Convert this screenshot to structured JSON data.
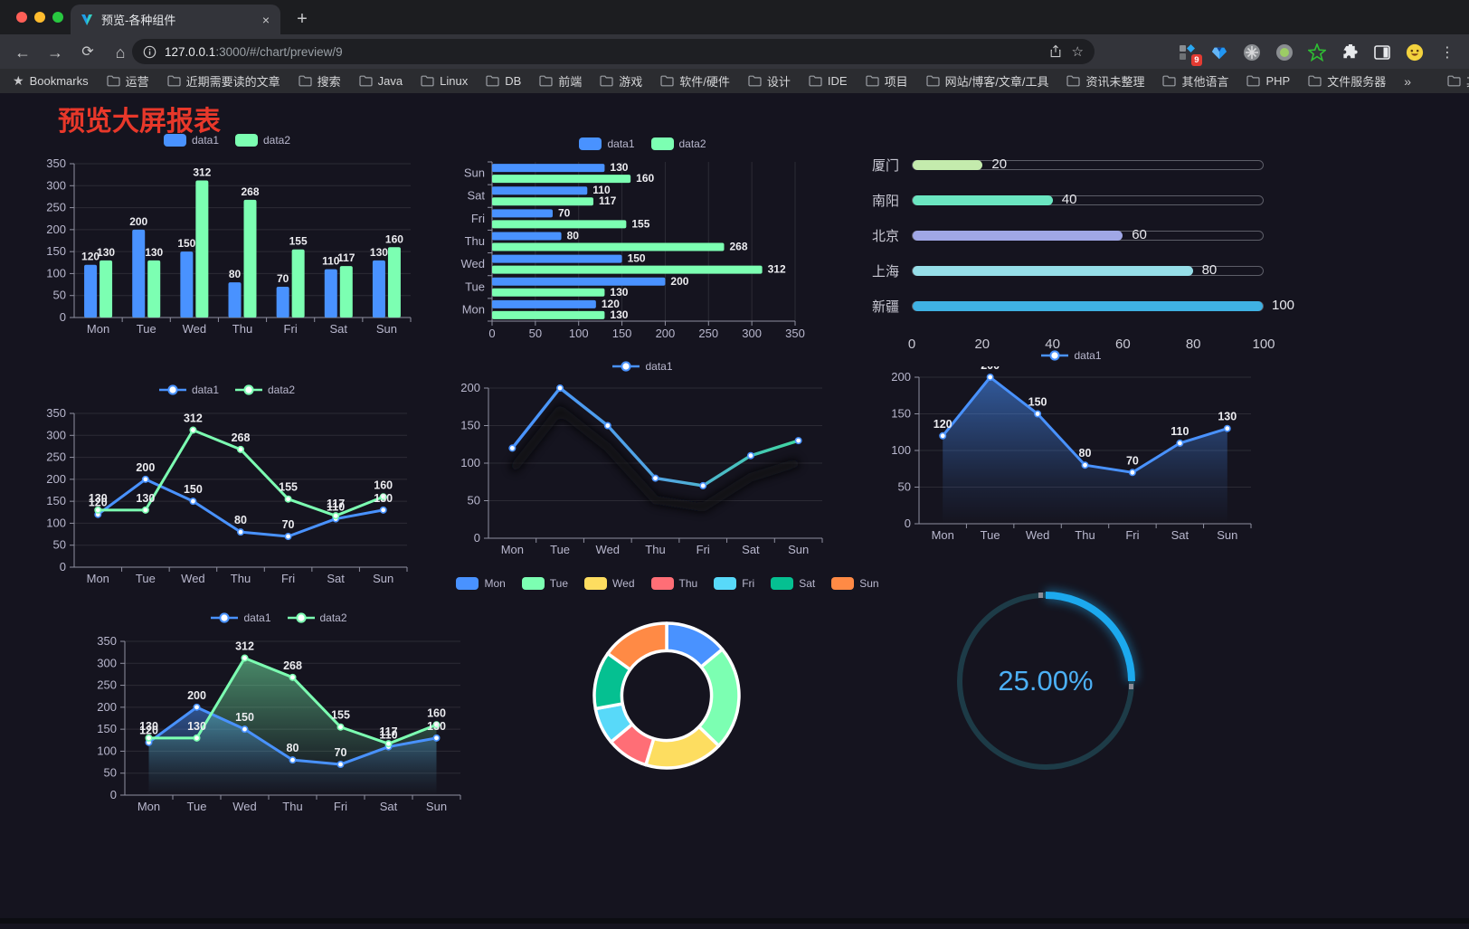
{
  "browser": {
    "tab_title": "预览-各种组件",
    "tab_close": "×",
    "new_tab": "+",
    "url_host": "127.0.0.1",
    "url_rest": ":3000/#/chart/preview/9",
    "extensions_badge": "9",
    "bookmarks_root": "Bookmarks",
    "bookmarks": [
      "运营",
      "近期需要读的文章",
      "搜索",
      "Java",
      "Linux",
      "DB",
      "前端",
      "游戏",
      "软件/硬件",
      "设计",
      "IDE",
      "项目",
      "网站/博客/文章/工具",
      "资讯未整理",
      "其他语言",
      "PHP",
      "文件服务器"
    ],
    "bookmarks_overflow": "»",
    "other_bookmarks": "其他书签"
  },
  "page": {
    "title": "预览大屏报表",
    "title_color": "#e8382a"
  },
  "palette": {
    "blue": "#4992ff",
    "green": "#7cffb2",
    "text": "#B9B8CE"
  },
  "chart_data": [
    {
      "id": "bar-vertical",
      "type": "bar",
      "categories": [
        "Mon",
        "Tue",
        "Wed",
        "Thu",
        "Fri",
        "Sat",
        "Sun"
      ],
      "series": [
        {
          "name": "data1",
          "color": "#4992ff",
          "values": [
            120,
            200,
            150,
            80,
            70,
            110,
            130
          ]
        },
        {
          "name": "data2",
          "color": "#7cffb2",
          "values": [
            130,
            130,
            312,
            268,
            155,
            117,
            160
          ]
        }
      ],
      "ylim": [
        0,
        350
      ],
      "ystep": 50,
      "legend_position": "top",
      "grid": true
    },
    {
      "id": "bar-horizontal",
      "type": "bar-horizontal",
      "categories": [
        "Mon",
        "Tue",
        "Wed",
        "Thu",
        "Fri",
        "Sat",
        "Sun"
      ],
      "series": [
        {
          "name": "data1",
          "color": "#4992ff",
          "values": [
            120,
            200,
            150,
            80,
            70,
            110,
            130
          ]
        },
        {
          "name": "data2",
          "color": "#7cffb2",
          "values": [
            130,
            130,
            312,
            268,
            155,
            117,
            160
          ]
        }
      ],
      "xlim": [
        0,
        350
      ],
      "xstep": 50,
      "legend_position": "top",
      "grid": true
    },
    {
      "id": "progress-bars",
      "type": "bar-horizontal-progress",
      "categories": [
        "厦门",
        "南阳",
        "北京",
        "上海",
        "新疆"
      ],
      "values": [
        20,
        40,
        60,
        80,
        100
      ],
      "colors": [
        "#c4ebad",
        "#6be6c1",
        "#a0a7e6",
        "#96dee8",
        "#3fb1e3"
      ],
      "xticks": [
        0,
        20,
        40,
        60,
        80,
        100
      ],
      "xlim": [
        0,
        100
      ]
    },
    {
      "id": "line-two-series",
      "type": "line",
      "categories": [
        "Mon",
        "Tue",
        "Wed",
        "Thu",
        "Fri",
        "Sat",
        "Sun"
      ],
      "series": [
        {
          "name": "data1",
          "color": "#4992ff",
          "values": [
            120,
            200,
            150,
            80,
            70,
            110,
            130
          ]
        },
        {
          "name": "data2",
          "color": "#7cffb2",
          "values": [
            130,
            130,
            312,
            268,
            155,
            117,
            160
          ]
        }
      ],
      "ylim": [
        0,
        350
      ],
      "ystep": 50,
      "labels": true,
      "legend_position": "top"
    },
    {
      "id": "line-gradient-shadow",
      "type": "line",
      "categories": [
        "Mon",
        "Tue",
        "Wed",
        "Thu",
        "Fri",
        "Sat",
        "Sun"
      ],
      "series": [
        {
          "name": "data1",
          "color_start": "#4992ff",
          "color_end": "#3fd8a0",
          "values": [
            120,
            200,
            150,
            80,
            70,
            110,
            130
          ]
        }
      ],
      "ylim": [
        0,
        200
      ],
      "ystep": 50,
      "labels": false,
      "shadow": true,
      "legend_position": "top"
    },
    {
      "id": "line-area-single",
      "type": "area",
      "categories": [
        "Mon",
        "Tue",
        "Wed",
        "Thu",
        "Fri",
        "Sat",
        "Sun"
      ],
      "series": [
        {
          "name": "data1",
          "color": "#4992ff",
          "values": [
            120,
            200,
            150,
            80,
            70,
            110,
            130
          ]
        }
      ],
      "ylim": [
        0,
        200
      ],
      "ystep": 50,
      "labels": true,
      "legend_position": "top"
    },
    {
      "id": "line-area-two-series",
      "type": "area",
      "categories": [
        "Mon",
        "Tue",
        "Wed",
        "Thu",
        "Fri",
        "Sat",
        "Sun"
      ],
      "series": [
        {
          "name": "data1",
          "color": "#4992ff",
          "values": [
            120,
            200,
            150,
            80,
            70,
            110,
            130
          ]
        },
        {
          "name": "data2",
          "color": "#7cffb2",
          "values": [
            130,
            130,
            312,
            268,
            155,
            117,
            160
          ]
        }
      ],
      "ylim": [
        0,
        350
      ],
      "ystep": 50,
      "labels": true,
      "legend_position": "top"
    },
    {
      "id": "donut",
      "type": "pie",
      "categories": [
        "Mon",
        "Tue",
        "Wed",
        "Thu",
        "Fri",
        "Sat",
        "Sun"
      ],
      "values": [
        120,
        200,
        150,
        80,
        70,
        110,
        130
      ],
      "colors": [
        "#4992ff",
        "#7cffb2",
        "#fddd60",
        "#ff6e76",
        "#58d9f9",
        "#05c091",
        "#ff8a45"
      ],
      "inner_radius_ratio": 0.62,
      "legend_position": "top"
    },
    {
      "id": "gauge",
      "type": "gauge",
      "percent": 25,
      "value_label": "25.00%",
      "color": "#1ca9ee",
      "track_color": "#1d3b47",
      "text_color": "#4cb0f5"
    }
  ]
}
